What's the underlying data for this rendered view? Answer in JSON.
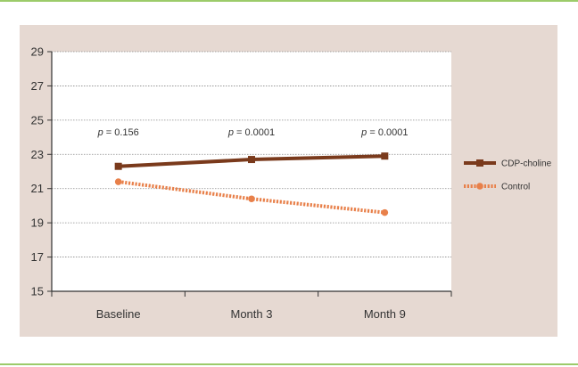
{
  "colors": {
    "frame": "#9ccb6a",
    "panel": "#e6d9d2",
    "plot_bg": "#ffffff",
    "grid": "#8a8a8a",
    "axis": "#333333",
    "cdp": "#7a3a1c",
    "control": "#e8804a"
  },
  "chart_data": {
    "type": "line",
    "categories": [
      "Baseline",
      "Month 3",
      "Month 9"
    ],
    "ylim": [
      15,
      29
    ],
    "yticks": [
      15,
      17,
      19,
      21,
      23,
      25,
      27,
      29
    ],
    "grid": "horizontal dotted",
    "legend_position": "right",
    "series": [
      {
        "name": "CDP-choline",
        "values": [
          22.3,
          22.7,
          22.9
        ],
        "line_style": "solid",
        "marker": "square"
      },
      {
        "name": "Control",
        "values": [
          21.4,
          20.4,
          19.6
        ],
        "line_style": "dotted",
        "marker": "circle"
      }
    ],
    "annotations": [
      {
        "category": "Baseline",
        "p_label": "p",
        "text": " = 0.156"
      },
      {
        "category": "Month 3",
        "p_label": "p",
        "text": " = 0.0001"
      },
      {
        "category": "Month 9",
        "p_label": "p",
        "text": " = 0.0001"
      }
    ]
  }
}
